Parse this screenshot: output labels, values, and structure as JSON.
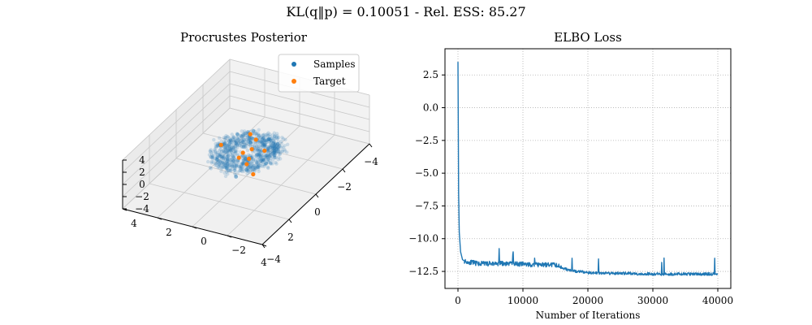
{
  "figure": {
    "suptitle": "KL(q‖p) = 0.10051 - Rel. ESS: 85.27"
  },
  "colors": {
    "samples": "#1f77b4",
    "target": "#ff7f0e",
    "grid": "#b0b0b0"
  },
  "chart_data": [
    {
      "type": "scatter",
      "projection": "3d",
      "title": "Procrustes Posterior",
      "xlim": [
        -4,
        4
      ],
      "ylim": [
        -4,
        4
      ],
      "zlim": [
        -4,
        4
      ],
      "x_ticks": [
        "−4",
        "−2",
        "0",
        "2",
        "4"
      ],
      "y_ticks": [
        "−4",
        "−2",
        "0",
        "2",
        "4"
      ],
      "z_ticks": [
        "−4",
        "−2",
        "0",
        "2",
        "4"
      ],
      "legend": {
        "placement": "top-right",
        "entries": [
          "Samples",
          "Target"
        ]
      },
      "series": [
        {
          "name": "Samples",
          "description_points": "dense spiral-shaped cloud centred at origin, radius about 1.5",
          "points": [
            [
              -1.2,
              0.5,
              0.6
            ],
            [
              -0.8,
              1.1,
              0.4
            ],
            [
              0.2,
              1.3,
              0.5
            ],
            [
              1.0,
              0.9,
              0.2
            ],
            [
              1.3,
              0.1,
              0.0
            ],
            [
              1.0,
              -0.8,
              -0.3
            ],
            [
              0.2,
              -1.3,
              -0.5
            ],
            [
              -0.7,
              -1.1,
              -0.6
            ],
            [
              -1.3,
              -0.3,
              -0.4
            ],
            [
              -0.6,
              0.2,
              0.1
            ],
            [
              0.4,
              -0.3,
              -0.1
            ],
            [
              1.4,
              -0.5,
              -0.8
            ]
          ]
        },
        {
          "name": "Target",
          "points": [
            [
              -1.1,
              0.6,
              0.2
            ],
            [
              -1.0,
              0.2,
              -0.2
            ],
            [
              0.3,
              1.2,
              0.9
            ],
            [
              -0.3,
              -0.1,
              -0.1
            ],
            [
              0.1,
              0.1,
              0.0
            ],
            [
              0.3,
              -0.4,
              -0.2
            ],
            [
              0.6,
              -0.5,
              -0.4
            ],
            [
              0.9,
              -1.1,
              -1.0
            ],
            [
              -0.6,
              -0.6,
              -0.6
            ],
            [
              0.4,
              0.1,
              -0.2
            ]
          ]
        }
      ]
    },
    {
      "type": "line",
      "title": "ELBO Loss",
      "xlabel": "Number of Iterations",
      "ylabel": "",
      "xlim": [
        -2000,
        42000
      ],
      "ylim": [
        -13.8,
        4.5
      ],
      "x_ticks": [
        0,
        10000,
        20000,
        30000,
        40000
      ],
      "y_ticks": [
        2.5,
        0.0,
        -2.5,
        -5.0,
        -7.5,
        -10.0,
        -12.5
      ],
      "x_tick_labels": [
        "0",
        "10000",
        "20000",
        "30000",
        "40000"
      ],
      "y_tick_labels": [
        "2.5",
        "0.0",
        "−2.5",
        "−5.0",
        "−7.5",
        "−10.0",
        "−12.5"
      ],
      "grid": "dotted",
      "series": [
        {
          "name": "",
          "x": [
            0,
            100,
            200,
            400,
            700,
            1000,
            1500,
            2000,
            3000,
            5000,
            8000,
            12000,
            15000,
            17000,
            20000,
            25000,
            30000,
            35000,
            40000
          ],
          "y": [
            3.5,
            -6.5,
            -9.5,
            -11.0,
            -11.6,
            -11.7,
            -11.8,
            -11.8,
            -11.9,
            -11.9,
            -11.9,
            -12.0,
            -12.0,
            -12.4,
            -12.6,
            -12.65,
            -12.7,
            -12.7,
            -12.7
          ]
        }
      ]
    }
  ]
}
